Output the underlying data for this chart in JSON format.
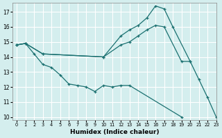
{
  "xlabel": "Humidex (Indice chaleur)",
  "bg_color": "#d4eeee",
  "grid_color": "#ffffff",
  "line_color": "#1a7070",
  "xlim": [
    -0.5,
    23
  ],
  "ylim": [
    9.8,
    17.6
  ],
  "yticks": [
    10,
    11,
    12,
    13,
    14,
    15,
    16,
    17
  ],
  "xticks": [
    0,
    1,
    2,
    3,
    4,
    5,
    6,
    7,
    8,
    9,
    10,
    11,
    12,
    13,
    14,
    15,
    16,
    17,
    18,
    19,
    20,
    21,
    22,
    23
  ],
  "lines": [
    {
      "x": [
        0,
        1,
        3,
        10,
        12,
        13,
        14,
        15,
        16,
        17,
        18,
        20,
        21,
        22,
        23
      ],
      "y": [
        14.8,
        14.9,
        14.2,
        14.0,
        15.4,
        15.8,
        16.1,
        16.6,
        17.4,
        17.2,
        16.0,
        13.7,
        12.5,
        11.3,
        10.0
      ]
    },
    {
      "x": [
        0,
        1,
        3,
        10,
        12,
        13,
        14,
        15,
        16,
        17,
        19,
        20
      ],
      "y": [
        14.8,
        14.9,
        14.2,
        14.0,
        14.8,
        15.0,
        15.4,
        15.8,
        16.1,
        16.0,
        13.7,
        13.7
      ]
    },
    {
      "x": [
        0,
        1,
        2,
        3,
        4,
        5,
        6,
        7,
        8,
        9,
        10,
        11,
        12,
        13,
        19
      ],
      "y": [
        14.8,
        14.9,
        14.2,
        13.5,
        13.3,
        12.8,
        12.2,
        12.1,
        12.0,
        11.7,
        12.1,
        12.0,
        12.1,
        12.1,
        10.0
      ]
    }
  ]
}
